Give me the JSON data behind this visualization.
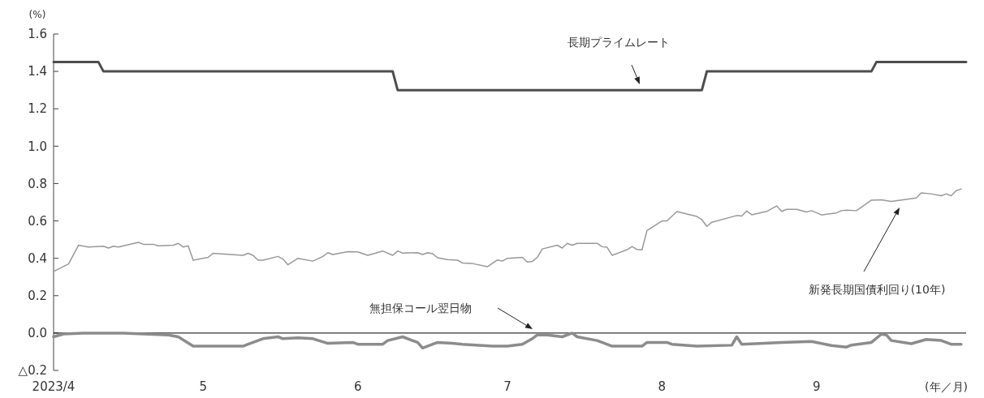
{
  "chart_data": {
    "type": "line",
    "ylabel": "(%)",
    "xlim": [
      "2023-04-01",
      "2023-10-01"
    ],
    "xticks": [
      {
        "value": "2023-04-01",
        "label": "2023/4"
      },
      {
        "value": "2023-05-01",
        "label": "5"
      },
      {
        "value": "2023-06-01",
        "label": "6"
      },
      {
        "value": "2023-07-01",
        "label": "7"
      },
      {
        "value": "2023-08-01",
        "label": "8"
      },
      {
        "value": "2023-09-01",
        "label": "9"
      }
    ],
    "ylim": [
      -0.2,
      1.6
    ],
    "yticks": [
      {
        "value": -0.2,
        "label": "△0.2"
      },
      {
        "value": 0,
        "label": "0.0"
      },
      0.2,
      0.4,
      0.6,
      0.8,
      {
        "value": 1,
        "label": "1.0"
      },
      1.2,
      1.4,
      1.6
    ],
    "grid": false,
    "ref_lines": [
      {
        "axis": "y",
        "value": 0,
        "color": "#000000"
      }
    ],
    "series": [
      {
        "color": "#4d4d4d",
        "x": [
          "2023-04-01",
          "2023-04-10",
          "2023-04-11",
          "2023-06-08",
          "2023-06-09",
          "2023-08-09",
          "2023-08-10",
          "2023-09-12",
          "2023-09-13",
          "2023-10-01"
        ],
        "values": [
          1.45,
          1.45,
          1.4,
          1.4,
          1.3,
          1.3,
          1.4,
          1.4,
          1.45,
          1.45
        ]
      },
      {
        "color": "#999999",
        "x": [
          "2023-04-01",
          "2023-04-04",
          "2023-04-06",
          "2023-04-08",
          "2023-04-11",
          "2023-04-12",
          "2023-04-13",
          "2023-04-14",
          "2023-04-18",
          "2023-04-19",
          "2023-04-21",
          "2023-04-22",
          "2023-04-25",
          "2023-04-26",
          "2023-04-27",
          "2023-04-28",
          "2023-04-29",
          "2023-05-02",
          "2023-05-03",
          "2023-05-09",
          "2023-05-10",
          "2023-05-11",
          "2023-05-12",
          "2023-05-13",
          "2023-05-16",
          "2023-05-17",
          "2023-05-18",
          "2023-05-20",
          "2023-05-23",
          "2023-05-25",
          "2023-05-26",
          "2023-05-27",
          "2023-05-30",
          "2023-06-01",
          "2023-06-03",
          "2023-06-06",
          "2023-06-08",
          "2023-06-09",
          "2023-06-10",
          "2023-06-13",
          "2023-06-14",
          "2023-06-15",
          "2023-06-16",
          "2023-06-17",
          "2023-06-19",
          "2023-06-21",
          "2023-06-22",
          "2023-06-24",
          "2023-06-27",
          "2023-06-29",
          "2023-06-30",
          "2023-07-01",
          "2023-07-04",
          "2023-07-05",
          "2023-07-06",
          "2023-07-07",
          "2023-07-08",
          "2023-07-11",
          "2023-07-12",
          "2023-07-13",
          "2023-07-14",
          "2023-07-15",
          "2023-07-19",
          "2023-07-20",
          "2023-07-21",
          "2023-07-22",
          "2023-07-25",
          "2023-07-26",
          "2023-07-27",
          "2023-07-28",
          "2023-07-29",
          "2023-08-01",
          "2023-08-02",
          "2023-08-04",
          "2023-08-08",
          "2023-08-09",
          "2023-08-10",
          "2023-08-11",
          "2023-08-16",
          "2023-08-17",
          "2023-08-18",
          "2023-08-19",
          "2023-08-22",
          "2023-08-24",
          "2023-08-25",
          "2023-08-26",
          "2023-08-28",
          "2023-08-30",
          "2023-08-31",
          "2023-09-02",
          "2023-09-05",
          "2023-09-06",
          "2023-09-07",
          "2023-09-09",
          "2023-09-12",
          "2023-09-14",
          "2023-09-16",
          "2023-09-21",
          "2023-09-22",
          "2023-09-24",
          "2023-09-26",
          "2023-09-27",
          "2023-09-28",
          "2023-09-29",
          "2023-09-30"
        ],
        "values": [
          0.33,
          0.37,
          0.47,
          0.46,
          0.465,
          0.455,
          0.465,
          0.46,
          0.485,
          0.475,
          0.475,
          0.467,
          0.47,
          0.48,
          0.46,
          0.467,
          0.39,
          0.405,
          0.427,
          0.416,
          0.427,
          0.416,
          0.39,
          0.39,
          0.41,
          0.396,
          0.365,
          0.4,
          0.385,
          0.41,
          0.43,
          0.42,
          0.435,
          0.434,
          0.416,
          0.439,
          0.416,
          0.439,
          0.428,
          0.43,
          0.42,
          0.43,
          0.425,
          0.403,
          0.393,
          0.39,
          0.375,
          0.372,
          0.355,
          0.391,
          0.385,
          0.4,
          0.405,
          0.38,
          0.383,
          0.405,
          0.45,
          0.47,
          0.455,
          0.48,
          0.47,
          0.48,
          0.48,
          0.462,
          0.459,
          0.416,
          0.446,
          0.463,
          0.447,
          0.445,
          0.549,
          0.6,
          0.6,
          0.65,
          0.624,
          0.607,
          0.571,
          0.593,
          0.629,
          0.626,
          0.653,
          0.633,
          0.651,
          0.68,
          0.651,
          0.662,
          0.662,
          0.648,
          0.655,
          0.632,
          0.643,
          0.655,
          0.658,
          0.655,
          0.711,
          0.713,
          0.704,
          0.723,
          0.75,
          0.745,
          0.735,
          0.745,
          0.735,
          0.762,
          0.771
        ]
      },
      {
        "color": "#8c8c8c",
        "x": [
          "2023-04-01",
          "2023-04-03",
          "2023-04-07",
          "2023-04-15",
          "2023-04-24",
          "2023-04-26",
          "2023-04-29",
          "2023-05-09",
          "2023-05-10",
          "2023-05-13",
          "2023-05-16",
          "2023-05-17",
          "2023-05-20",
          "2023-05-23",
          "2023-05-26",
          "2023-05-31",
          "2023-06-01",
          "2023-06-06",
          "2023-06-07",
          "2023-06-10",
          "2023-06-13",
          "2023-06-14",
          "2023-06-17",
          "2023-06-20",
          "2023-06-22",
          "2023-06-28",
          "2023-07-01",
          "2023-07-04",
          "2023-07-06",
          "2023-07-07",
          "2023-07-09",
          "2023-07-12",
          "2023-07-14",
          "2023-07-15",
          "2023-07-19",
          "2023-07-20",
          "2023-07-22",
          "2023-07-28",
          "2023-07-29",
          "2023-08-02",
          "2023-08-03",
          "2023-08-08",
          "2023-08-15",
          "2023-08-16",
          "2023-08-17",
          "2023-08-25",
          "2023-08-31",
          "2023-09-04",
          "2023-09-07",
          "2023-09-08",
          "2023-09-12",
          "2023-09-14",
          "2023-09-15",
          "2023-09-16",
          "2023-09-20",
          "2023-09-23",
          "2023-09-26",
          "2023-09-28",
          "2023-09-30"
        ],
        "values": [
          -0.02,
          -0.005,
          0,
          0,
          -0.01,
          -0.02,
          -0.07,
          -0.07,
          -0.06,
          -0.03,
          -0.02,
          -0.03,
          -0.025,
          -0.03,
          -0.055,
          -0.05,
          -0.06,
          -0.06,
          -0.04,
          -0.02,
          -0.05,
          -0.08,
          -0.05,
          -0.055,
          -0.06,
          -0.07,
          -0.07,
          -0.06,
          -0.03,
          -0.01,
          -0.01,
          -0.02,
          0,
          -0.02,
          -0.04,
          -0.05,
          -0.07,
          -0.07,
          -0.05,
          -0.05,
          -0.06,
          -0.07,
          -0.065,
          -0.02,
          -0.06,
          -0.05,
          -0.045,
          -0.067,
          -0.075,
          -0.064,
          -0.05,
          -0.006,
          -0.01,
          -0.04,
          -0.057,
          -0.034,
          -0.04,
          -0.06,
          -0.06
        ]
      }
    ],
    "annotations": [
      "長期プライムレート",
      "無担保コール翌日物",
      "新発長期国債利回り(10年)",
      "(年／月)"
    ]
  }
}
